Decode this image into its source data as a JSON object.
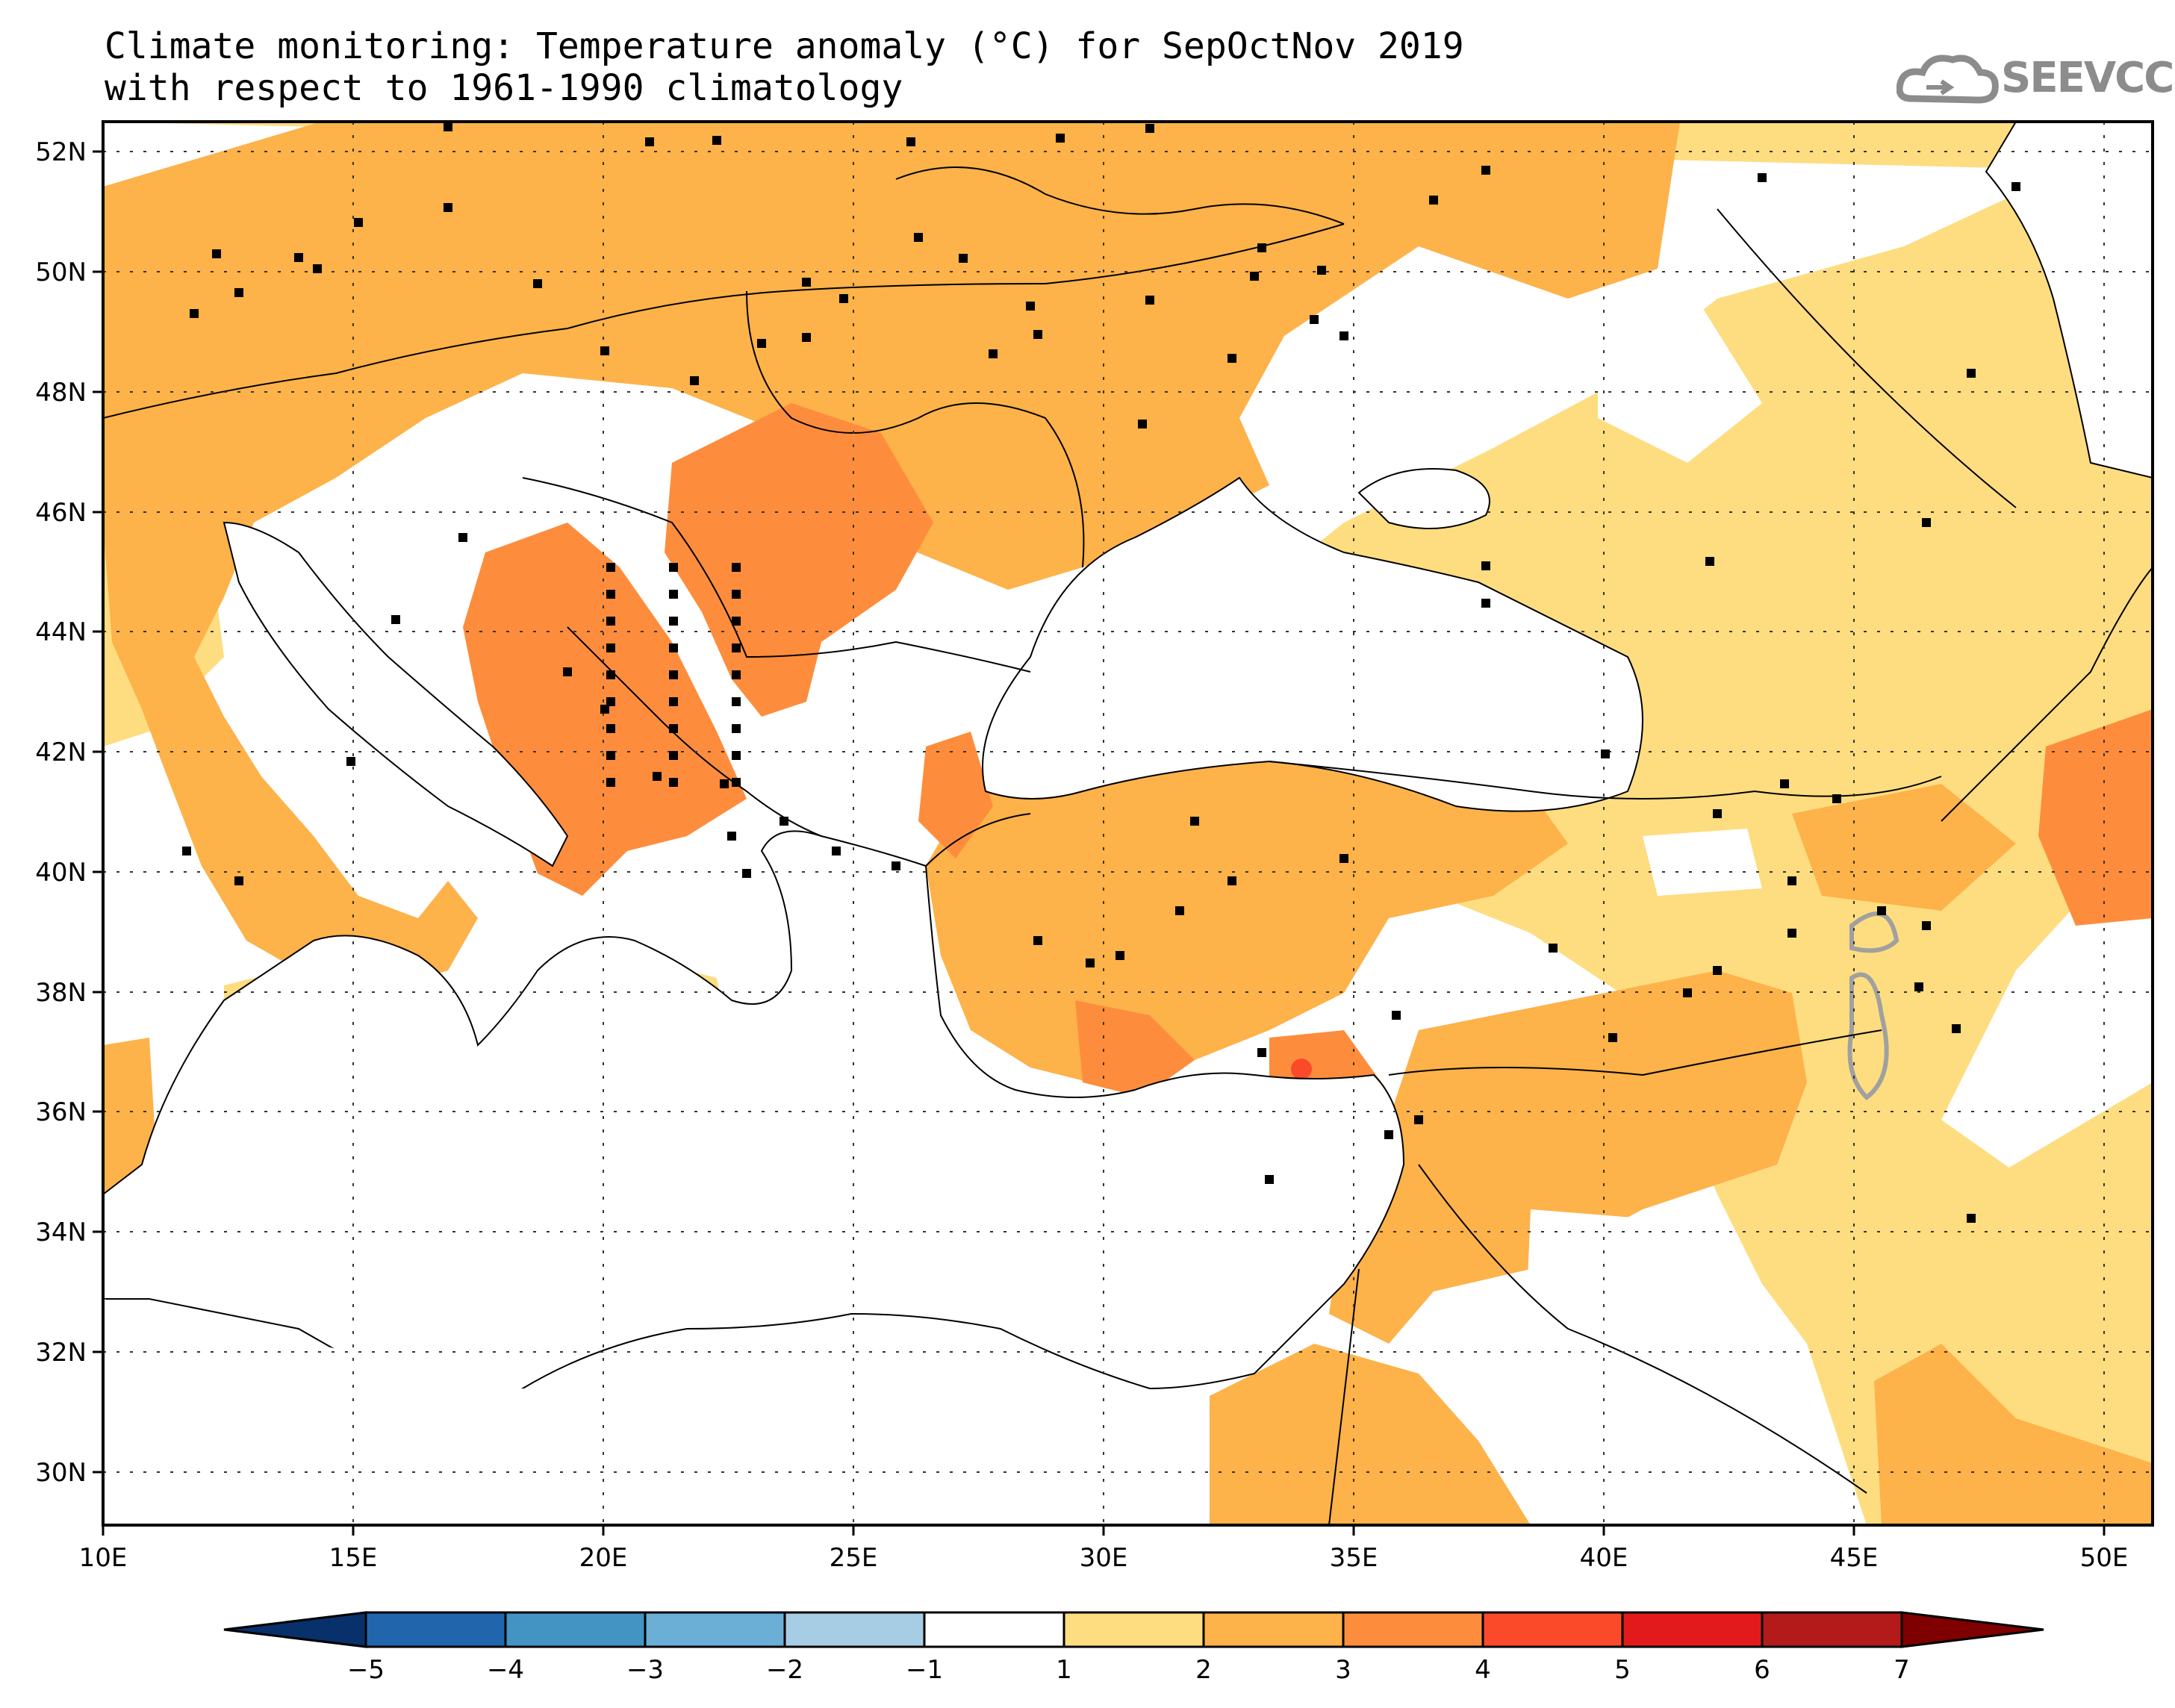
{
  "title": {
    "line1": "Climate monitoring: Temperature anomaly (°C) for SepOctNov 2019",
    "line2": "with respect to 1961-1990 climatology"
  },
  "logo": {
    "text": "SEEVCCC",
    "icon": "cloud-icon"
  },
  "axes": {
    "lat_labels": [
      "52N",
      "50N",
      "48N",
      "46N",
      "44N",
      "42N",
      "40N",
      "38N",
      "36N",
      "34N",
      "32N",
      "30N"
    ],
    "lon_labels": [
      "10E",
      "15E",
      "20E",
      "25E",
      "30E",
      "35E",
      "40E",
      "45E",
      "50E"
    ]
  },
  "colorbar": {
    "tick_labels": [
      "-5",
      "-4",
      "-3",
      "-2",
      "-1",
      "1",
      "2",
      "3",
      "4",
      "5",
      "6",
      "7"
    ],
    "colors": [
      "#08306b",
      "#2166ac",
      "#4393c3",
      "#6baed6",
      "#a6cde3",
      "#ffffff",
      "#fedd80",
      "#fdb24a",
      "#fd8d3c",
      "#fb4a2a",
      "#e31a1c",
      "#b31b1b",
      "#7f0000"
    ]
  },
  "chart_data": {
    "type": "heatmap",
    "title": "Climate monitoring: Temperature anomaly (°C) for SepOctNov 2019",
    "subtitle": "with respect to 1961-1990 climatology",
    "lon_range": [
      10,
      51
    ],
    "lat_range": [
      29,
      52.5
    ],
    "levels": [
      -5,
      -4,
      -3,
      -2,
      -1,
      1,
      2,
      3,
      4,
      5,
      6,
      7
    ],
    "summary": {
      "dominant_range": "2-3",
      "max_region": "Serbia / North Macedonia / Romania interior 3-4, Adana area 4-5"
    }
  }
}
